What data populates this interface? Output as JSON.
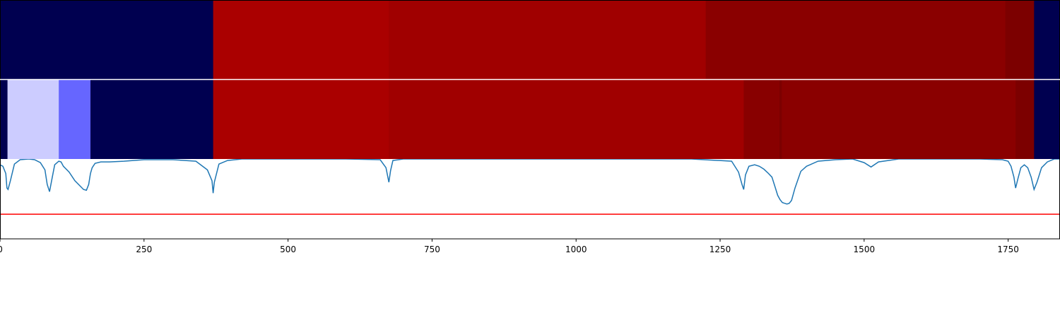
{
  "chart_data": [
    {
      "type": "heatmap",
      "x_range": [
        0,
        1840
      ],
      "segments": [
        {
          "x0": 0,
          "x1": 370,
          "color": "#000050"
        },
        {
          "x0": 370,
          "x1": 675,
          "color": "#aa0000"
        },
        {
          "x0": 675,
          "x1": 1225,
          "color": "#a00000"
        },
        {
          "x0": 1225,
          "x1": 1745,
          "color": "#8a0000"
        },
        {
          "x0": 1745,
          "x1": 1795,
          "color": "#7c0000"
        },
        {
          "x0": 1795,
          "x1": 1840,
          "color": "#000050"
        }
      ]
    },
    {
      "type": "heatmap",
      "x_range": [
        0,
        1840
      ],
      "segments": [
        {
          "x0": 0,
          "x1": 13,
          "color": "#000050"
        },
        {
          "x0": 13,
          "x1": 102,
          "color": "#ccccff"
        },
        {
          "x0": 102,
          "x1": 157,
          "color": "#6666ff"
        },
        {
          "x0": 157,
          "x1": 370,
          "color": "#000050"
        },
        {
          "x0": 370,
          "x1": 675,
          "color": "#aa0000"
        },
        {
          "x0": 675,
          "x1": 1291,
          "color": "#a00000"
        },
        {
          "x0": 1291,
          "x1": 1353,
          "color": "#880000"
        },
        {
          "x0": 1353,
          "x1": 1357,
          "color": "#7c0000"
        },
        {
          "x0": 1357,
          "x1": 1763,
          "color": "#8a0000"
        },
        {
          "x0": 1763,
          "x1": 1795,
          "color": "#7c0000"
        },
        {
          "x0": 1795,
          "x1": 1840,
          "color": "#000050"
        }
      ]
    },
    {
      "type": "line",
      "xlim": [
        0,
        1840
      ],
      "ylim": [
        -0.1,
        1.0
      ],
      "series_color": "#1f77b4",
      "threshold": {
        "y": 0.24,
        "color": "#ff0000"
      },
      "x": [
        0,
        5,
        10,
        12,
        14,
        18,
        25,
        35,
        50,
        60,
        70,
        78,
        82,
        86,
        90,
        95,
        102,
        106,
        110,
        120,
        130,
        145,
        150,
        154,
        157,
        160,
        165,
        175,
        190,
        215,
        250,
        300,
        340,
        360,
        368,
        370,
        372,
        380,
        395,
        420,
        500,
        600,
        660,
        670,
        675,
        678,
        682,
        700,
        800,
        1000,
        1200,
        1270,
        1282,
        1288,
        1291,
        1294,
        1300,
        1310,
        1318,
        1326,
        1334,
        1340,
        1346,
        1350,
        1354,
        1358,
        1362,
        1366,
        1370,
        1374,
        1380,
        1390,
        1400,
        1420,
        1450,
        1480,
        1500,
        1512,
        1525,
        1560,
        1620,
        1700,
        1740,
        1750,
        1755,
        1760,
        1763,
        1767,
        1772,
        1778,
        1784,
        1790,
        1795,
        1800,
        1808,
        1818,
        1830,
        1840
      ],
      "y": [
        0.92,
        0.9,
        0.8,
        0.6,
        0.58,
        0.7,
        0.93,
        0.99,
        1.0,
        0.99,
        0.95,
        0.85,
        0.65,
        0.55,
        0.72,
        0.92,
        0.97,
        0.96,
        0.9,
        0.82,
        0.7,
        0.58,
        0.57,
        0.65,
        0.8,
        0.88,
        0.94,
        0.96,
        0.96,
        0.97,
        0.99,
        0.99,
        0.97,
        0.85,
        0.7,
        0.53,
        0.68,
        0.93,
        0.98,
        1.0,
        1.0,
        1.0,
        0.99,
        0.88,
        0.68,
        0.84,
        0.98,
        1.0,
        1.0,
        1.0,
        1.0,
        0.97,
        0.82,
        0.65,
        0.58,
        0.78,
        0.9,
        0.92,
        0.9,
        0.86,
        0.8,
        0.75,
        0.6,
        0.5,
        0.44,
        0.4,
        0.39,
        0.38,
        0.39,
        0.43,
        0.6,
        0.83,
        0.9,
        0.97,
        0.99,
        1.0,
        0.95,
        0.89,
        0.96,
        1.0,
        1.0,
        1.0,
        0.99,
        0.97,
        0.9,
        0.75,
        0.6,
        0.73,
        0.88,
        0.92,
        0.88,
        0.75,
        0.58,
        0.68,
        0.88,
        0.96,
        1.0,
        1.0
      ],
      "xticks": [
        {
          "value": 0,
          "label": "0"
        },
        {
          "value": 250,
          "label": "250"
        },
        {
          "value": 500,
          "label": "500"
        },
        {
          "value": 750,
          "label": "750"
        },
        {
          "value": 1000,
          "label": "1000"
        },
        {
          "value": 1250,
          "label": "1250"
        },
        {
          "value": 1500,
          "label": "1500"
        },
        {
          "value": 1750,
          "label": "1750"
        }
      ]
    }
  ]
}
